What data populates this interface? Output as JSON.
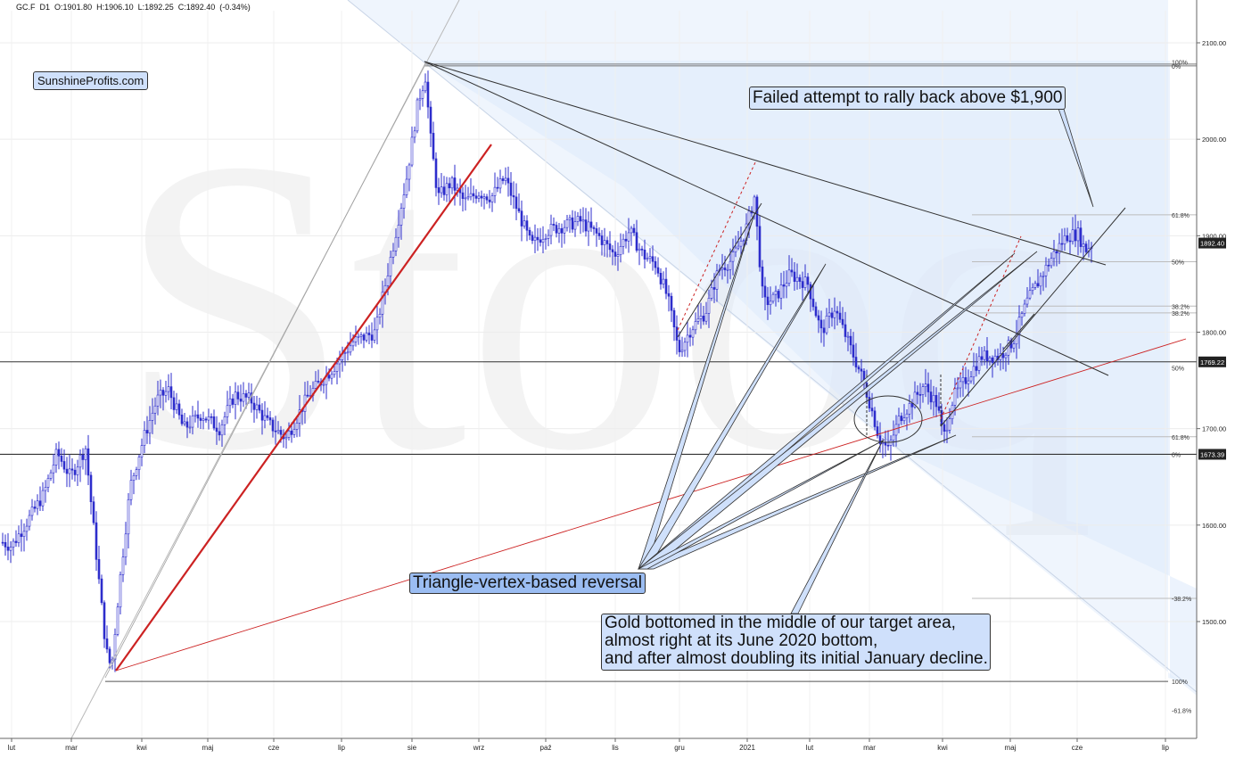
{
  "header": {
    "symbol": "GC.F",
    "interval": "D1",
    "open": "O:1901.80",
    "high": "H:1906.10",
    "low": "L:1892.25",
    "close": "C:1892.40",
    "change": "(-0.34%)"
  },
  "brand": "SunshineProfits.com",
  "watermark": "Stooq",
  "annotations": {
    "failed_attempt": "Failed attempt to rally back above $1,900",
    "triangle": "Triangle-vertex-based reversal",
    "bottom_line1": "Gold bottomed in the middle of our target area,",
    "bottom_line2": "almost right at its June 2020 bottom,",
    "bottom_line3": "and after almost doubling its initial January decline."
  },
  "colors": {
    "candle": "#2d2dcc",
    "support_line": "#cc2222",
    "shade": "#dce9fb",
    "note_fill": "#cfe0fb",
    "note_fill_strong": "#9bbdf2"
  },
  "chart_data": {
    "type": "candlestick",
    "instrument": "GC.F",
    "ylim": [
      1360,
      2130
    ],
    "y_ticks": [
      1500.0,
      1600.0,
      1700.0,
      1800.0,
      1900.0,
      2000.0,
      2100.0
    ],
    "y_tick_labels": [
      "1500.00",
      "1600.00",
      "1700.00",
      "1800.00",
      "1900.00",
      "2000.00",
      "2100.00"
    ],
    "x_tick_labels": [
      "lut",
      "mar",
      "kwi",
      "maj",
      "cze",
      "lip",
      "sie",
      "wrz",
      "paź",
      "lis",
      "gru",
      "2021",
      "lut",
      "mar",
      "kwi",
      "maj",
      "cze",
      "lip"
    ],
    "price_tags": [
      {
        "label": "1892.40",
        "value": 1892.4,
        "style": "dark"
      },
      {
        "label": "1769.22",
        "value": 1769.22,
        "style": "dark"
      },
      {
        "label": "1673.39",
        "value": 1673.39,
        "style": "dark"
      }
    ],
    "horizontal_lines": [
      2077,
      1769.22,
      1673.39,
      1438
    ],
    "fib_labels": [
      {
        "label": "100%",
        "value": 2080
      },
      {
        "label": "0%",
        "value": 2076
      },
      {
        "label": "61.8%",
        "value": 1921.7
      },
      {
        "label": "50%",
        "value": 1873
      },
      {
        "label": "38.2%",
        "value": 1827
      },
      {
        "label": "38.2%",
        "value": 1820
      },
      {
        "label": "50%",
        "value": 1763
      },
      {
        "label": "61.8%",
        "value": 1691.6
      },
      {
        "label": "0%",
        "value": 1673.39
      },
      {
        "label": "-38.2%",
        "value": 1524
      },
      {
        "label": "100%",
        "value": 1438
      },
      {
        "label": "-61.8%",
        "value": 1408
      }
    ],
    "anchor_points": [
      {
        "label": "March 2020 low",
        "value": 1451
      },
      {
        "label": "August 2020 high",
        "value": 2076
      },
      {
        "label": "December 2020 low",
        "value": 1768
      },
      {
        "label": "January 2021 high",
        "value": 1960
      },
      {
        "label": "March 2021 low",
        "value": 1673.39
      },
      {
        "label": "June 2021 high",
        "value": 1912
      }
    ]
  }
}
